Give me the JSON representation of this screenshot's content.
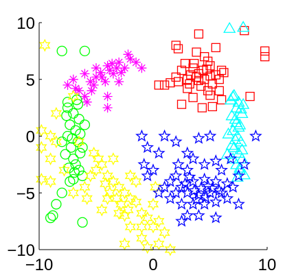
{
  "chart_data": {
    "type": "scatter",
    "title": "",
    "xlabel": "",
    "ylabel": "",
    "xlim": [
      -10,
      10
    ],
    "ylim": [
      -10,
      10
    ],
    "xticks": [
      -10,
      0,
      10
    ],
    "yticks": [
      -10,
      -5,
      0,
      5,
      10
    ],
    "xtick_labels": [
      "−10",
      "0",
      "10"
    ],
    "ytick_labels": [
      "−10",
      "−5",
      "0",
      "5",
      "10"
    ],
    "grid": false,
    "legend": "none",
    "series": [
      {
        "color": "#ff0000",
        "marker": "square",
        "points": [
          [
            2.0,
            5.2
          ],
          [
            2.5,
            5.8
          ],
          [
            3.0,
            5.0
          ],
          [
            3.5,
            6.0
          ],
          [
            4.0,
            5.5
          ],
          [
            4.5,
            5.0
          ],
          [
            5.0,
            6.2
          ],
          [
            5.5,
            5.4
          ],
          [
            6.0,
            5.8
          ],
          [
            3.2,
            4.6
          ],
          [
            4.2,
            4.4
          ],
          [
            5.2,
            4.6
          ],
          [
            2.8,
            6.4
          ],
          [
            4.8,
            6.6
          ],
          [
            3.8,
            5.2
          ],
          [
            4.4,
            5.8
          ],
          [
            5.8,
            5.0
          ],
          [
            2.2,
            4.8
          ],
          [
            6.2,
            5.6
          ],
          [
            3.6,
            6.4
          ],
          [
            4.0,
            4.9
          ],
          [
            5.0,
            5.3
          ],
          [
            3.3,
            5.4
          ],
          [
            4.7,
            5.9
          ],
          [
            1.5,
            4.7
          ],
          [
            1.0,
            4.5
          ],
          [
            0.5,
            4.5
          ],
          [
            2.2,
            7.7
          ],
          [
            3.8,
            7.4
          ],
          [
            4.5,
            7.0
          ],
          [
            5.5,
            7.8
          ],
          [
            4.0,
            9.0
          ],
          [
            2.0,
            8.0
          ],
          [
            8.0,
            9.3
          ],
          [
            9.8,
            7.5
          ],
          [
            9.8,
            7.0
          ],
          [
            5.0,
            3.6
          ],
          [
            3.5,
            3.4
          ],
          [
            2.5,
            2.8
          ],
          [
            4.3,
            2.5
          ],
          [
            5.2,
            2.6
          ],
          [
            8.5,
            3.5
          ],
          [
            5.8,
            4.0
          ],
          [
            6.0,
            3.2
          ],
          [
            3.0,
            4.2
          ],
          [
            4.8,
            4.0
          ]
        ]
      },
      {
        "color": "#00ffff",
        "marker": "triangle",
        "points": [
          [
            6.7,
            9.5
          ],
          [
            7.9,
            9.6
          ],
          [
            7.0,
            3.5
          ],
          [
            7.5,
            3.0
          ],
          [
            7.3,
            2.5
          ],
          [
            7.8,
            2.0
          ],
          [
            7.2,
            1.5
          ],
          [
            7.6,
            1.0
          ],
          [
            7.0,
            0.5
          ],
          [
            7.4,
            0.0
          ],
          [
            7.7,
            -0.5
          ],
          [
            7.1,
            -1.0
          ],
          [
            7.5,
            -1.5
          ],
          [
            7.8,
            -2.0
          ],
          [
            7.3,
            -2.5
          ],
          [
            7.6,
            -3.0
          ],
          [
            6.8,
            3.2
          ],
          [
            7.9,
            2.8
          ],
          [
            6.9,
            1.8
          ],
          [
            7.5,
            0.8
          ],
          [
            7.2,
            -0.3
          ],
          [
            7.8,
            -1.2
          ],
          [
            7.0,
            -2.0
          ],
          [
            7.6,
            -2.8
          ],
          [
            8.0,
            -3.4
          ],
          [
            6.9,
            -0.8
          ],
          [
            7.3,
            1.2
          ],
          [
            6.6,
            0.2
          ],
          [
            7.7,
            2.4
          ],
          [
            7.1,
            3.6
          ],
          [
            7.4,
            -3.6
          ],
          [
            6.5,
            -1.6
          ]
        ]
      },
      {
        "color": "#ff00ff",
        "marker": "asterisk",
        "points": [
          [
            -7.5,
            4.5
          ],
          [
            -7.0,
            5.0
          ],
          [
            -6.5,
            4.0
          ],
          [
            -6.0,
            5.5
          ],
          [
            -5.5,
            4.8
          ],
          [
            -5.0,
            6.0
          ],
          [
            -4.5,
            5.2
          ],
          [
            -4.0,
            6.2
          ],
          [
            -3.5,
            5.5
          ],
          [
            -3.0,
            6.5
          ],
          [
            -2.5,
            6.0
          ],
          [
            -2.0,
            6.8
          ],
          [
            -1.5,
            6.5
          ],
          [
            -6.0,
            3.5
          ],
          [
            -5.2,
            4.5
          ],
          [
            -4.2,
            4.8
          ],
          [
            -3.8,
            5.8
          ],
          [
            -2.8,
            5.6
          ],
          [
            -4.0,
            2.5
          ],
          [
            -4.0,
            3.5
          ],
          [
            -3.0,
            4.8
          ],
          [
            -5.8,
            3.0
          ],
          [
            -1.0,
            6.0
          ],
          [
            -2.2,
            7.2
          ],
          [
            -5.0,
            5.2
          ],
          [
            -3.2,
            6.0
          ],
          [
            -6.8,
            4.2
          ],
          [
            -4.6,
            5.6
          ],
          [
            -3.6,
            6.4
          ],
          [
            -5.4,
            4.0
          ]
        ]
      },
      {
        "color": "#00ff00",
        "marker": "circle",
        "points": [
          [
            -8.0,
            7.5
          ],
          [
            -6.0,
            7.5
          ],
          [
            -7.5,
            2.5
          ],
          [
            -7.0,
            2.0
          ],
          [
            -6.5,
            1.5
          ],
          [
            -7.3,
            1.0
          ],
          [
            -6.8,
            0.5
          ],
          [
            -7.5,
            0.0
          ],
          [
            -6.6,
            -0.5
          ],
          [
            -7.2,
            -1.0
          ],
          [
            -6.4,
            -1.5
          ],
          [
            -7.0,
            -2.0
          ],
          [
            -6.8,
            -2.5
          ],
          [
            -7.4,
            -2.8
          ],
          [
            -6.5,
            -3.0
          ],
          [
            -6.2,
            -3.5
          ],
          [
            -7.0,
            -3.8
          ],
          [
            -6.6,
            2.8
          ],
          [
            -7.6,
            1.8
          ],
          [
            -6.4,
            0.2
          ],
          [
            -7.1,
            -0.2
          ],
          [
            -6.2,
            -1.0
          ],
          [
            -7.7,
            -1.6
          ],
          [
            -6.9,
            -3.2
          ],
          [
            -7.5,
            3.0
          ],
          [
            -6.7,
            3.2
          ],
          [
            -7.3,
            -4.0
          ],
          [
            -8.0,
            -5.0
          ],
          [
            -8.5,
            -6.0
          ],
          [
            -8.8,
            -7.0
          ],
          [
            -9.0,
            -7.2
          ],
          [
            -6.2,
            -7.6
          ],
          [
            -8.0,
            -0.5
          ],
          [
            -6.0,
            1.0
          ]
        ]
      },
      {
        "color": "#ffff00",
        "marker": "hexagram",
        "points": [
          [
            -9.5,
            8.0
          ],
          [
            -7.0,
            3.5
          ],
          [
            -8.5,
            2.0
          ],
          [
            -9.8,
            0.5
          ],
          [
            -9.0,
            0.0
          ],
          [
            -8.5,
            -0.5
          ],
          [
            -9.8,
            -1.0
          ],
          [
            -9.0,
            -2.0
          ],
          [
            -7.8,
            -3.0
          ],
          [
            -9.8,
            -3.8
          ],
          [
            -9.0,
            -4.0
          ],
          [
            -7.0,
            -5.0
          ],
          [
            -6.0,
            -4.5
          ],
          [
            -5.5,
            -3.5
          ],
          [
            -5.0,
            -3.0
          ],
          [
            -4.5,
            -2.5
          ],
          [
            -4.0,
            -3.5
          ],
          [
            -3.5,
            -4.0
          ],
          [
            -3.0,
            -4.5
          ],
          [
            -2.5,
            -5.0
          ],
          [
            -2.0,
            -5.5
          ],
          [
            -4.8,
            -2.0
          ],
          [
            -5.2,
            -1.5
          ],
          [
            -4.2,
            -4.2
          ],
          [
            -3.8,
            -5.0
          ],
          [
            -3.2,
            -5.5
          ],
          [
            -2.8,
            -6.0
          ],
          [
            -2.2,
            -6.5
          ],
          [
            -1.5,
            -5.8
          ],
          [
            -1.0,
            -6.8
          ],
          [
            -0.5,
            -7.2
          ],
          [
            0.0,
            -6.0
          ],
          [
            0.5,
            -7.5
          ],
          [
            0.0,
            -8.0
          ],
          [
            -1.0,
            -9.0
          ],
          [
            -2.5,
            -9.5
          ],
          [
            -0.5,
            -9.8
          ],
          [
            0.5,
            -9.5
          ],
          [
            1.0,
            -8.5
          ],
          [
            1.5,
            -10.0
          ],
          [
            -3.5,
            -2.0
          ],
          [
            -2.0,
            -3.5
          ],
          [
            -4.0,
            -5.5
          ],
          [
            -2.5,
            -7.0
          ],
          [
            -1.0,
            -8.0
          ],
          [
            -1.5,
            -4.0
          ],
          [
            -6.5,
            -0.5
          ],
          [
            -5.8,
            -5.5
          ],
          [
            -4.5,
            -6.5
          ],
          [
            -3.0,
            -6.8
          ],
          [
            -2.0,
            -8.0
          ],
          [
            0.2,
            -4.5
          ]
        ]
      },
      {
        "color": "#0000ff",
        "marker": "pentagram",
        "points": [
          [
            -1.0,
            0.0
          ],
          [
            -0.5,
            -1.0
          ],
          [
            1.0,
            0.0
          ],
          [
            0.5,
            -1.5
          ],
          [
            2.0,
            -0.5
          ],
          [
            4.0,
            -0.2
          ],
          [
            5.0,
            0.0
          ],
          [
            3.5,
            -2.0
          ],
          [
            4.5,
            -2.5
          ],
          [
            5.5,
            -2.2
          ],
          [
            6.0,
            -3.0
          ],
          [
            3.0,
            -3.0
          ],
          [
            2.0,
            -3.5
          ],
          [
            1.5,
            -4.0
          ],
          [
            1.0,
            -4.5
          ],
          [
            2.5,
            -4.5
          ],
          [
            3.5,
            -4.0
          ],
          [
            4.5,
            -3.8
          ],
          [
            5.5,
            -4.0
          ],
          [
            6.5,
            -4.2
          ],
          [
            6.0,
            -5.0
          ],
          [
            5.0,
            -5.0
          ],
          [
            4.0,
            -5.2
          ],
          [
            3.0,
            -5.0
          ],
          [
            2.0,
            -5.0
          ],
          [
            1.5,
            -5.5
          ],
          [
            2.5,
            -6.0
          ],
          [
            3.5,
            -6.0
          ],
          [
            4.5,
            -6.0
          ],
          [
            5.5,
            -5.8
          ],
          [
            6.5,
            -5.5
          ],
          [
            7.0,
            -4.5
          ],
          [
            7.5,
            -3.5
          ],
          [
            8.0,
            -2.5
          ],
          [
            7.5,
            -6.0
          ],
          [
            3.0,
            -7.0
          ],
          [
            4.0,
            -7.0
          ],
          [
            5.5,
            -7.2
          ],
          [
            -0.5,
            -3.5
          ],
          [
            0.5,
            -5.0
          ],
          [
            2.5,
            -7.5
          ],
          [
            3.2,
            -3.6
          ],
          [
            4.8,
            -4.4
          ],
          [
            4.2,
            -4.6
          ],
          [
            3.8,
            -5.6
          ],
          [
            5.2,
            -4.6
          ],
          [
            2.8,
            -4.2
          ],
          [
            3.6,
            -4.8
          ],
          [
            4.6,
            -5.4
          ],
          [
            5.8,
            -4.8
          ],
          [
            9.0,
            0.0
          ],
          [
            0.0,
            -3.0
          ],
          [
            -0.8,
            -2.5
          ],
          [
            6.8,
            -2.0
          ],
          [
            3.0,
            -1.5
          ],
          [
            2.2,
            -2.5
          ]
        ]
      }
    ]
  }
}
